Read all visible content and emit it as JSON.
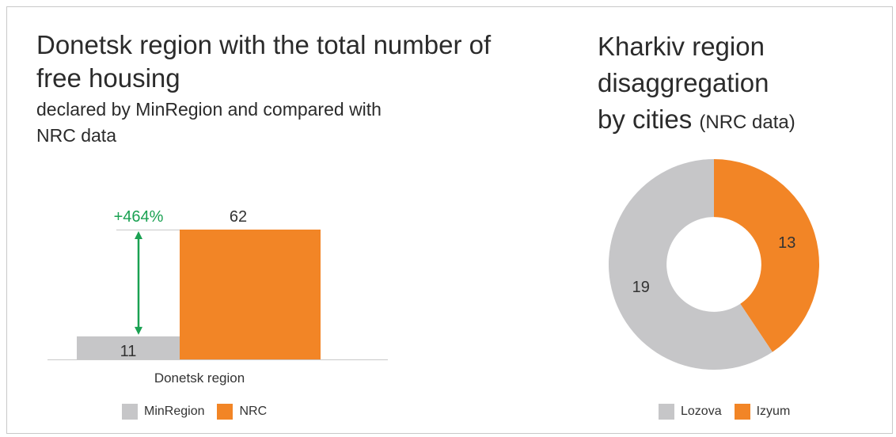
{
  "colors": {
    "minregion": "#c6c6c8",
    "nrc": "#f28526",
    "arrow": "#1aa152",
    "text": "#2b2b2b"
  },
  "left": {
    "title": "Donetsk region with the total number of free housing",
    "subtitle": "declared by MinRegion and compared with NRC data"
  },
  "right": {
    "title_lines": [
      "Kharkiv region",
      "disaggregation",
      "by cities"
    ],
    "title_suffix": "(NRC data)"
  },
  "chart_data": [
    {
      "type": "bar",
      "categories": [
        "Donetsk region"
      ],
      "series": [
        {
          "name": "MinRegion",
          "values": [
            11
          ]
        },
        {
          "name": "NRC",
          "values": [
            62
          ]
        }
      ],
      "annotation": "+464%",
      "legend": "bottom"
    },
    {
      "type": "pie",
      "hole": 0.45,
      "labels": [
        "Lozova",
        "Izyum"
      ],
      "values": [
        19,
        13
      ],
      "legend": "bottom"
    }
  ],
  "legends": {
    "bar": [
      {
        "label": "MinRegion"
      },
      {
        "label": "NRC"
      }
    ],
    "donut": [
      {
        "label": "Lozova"
      },
      {
        "label": "Izyum"
      }
    ]
  }
}
